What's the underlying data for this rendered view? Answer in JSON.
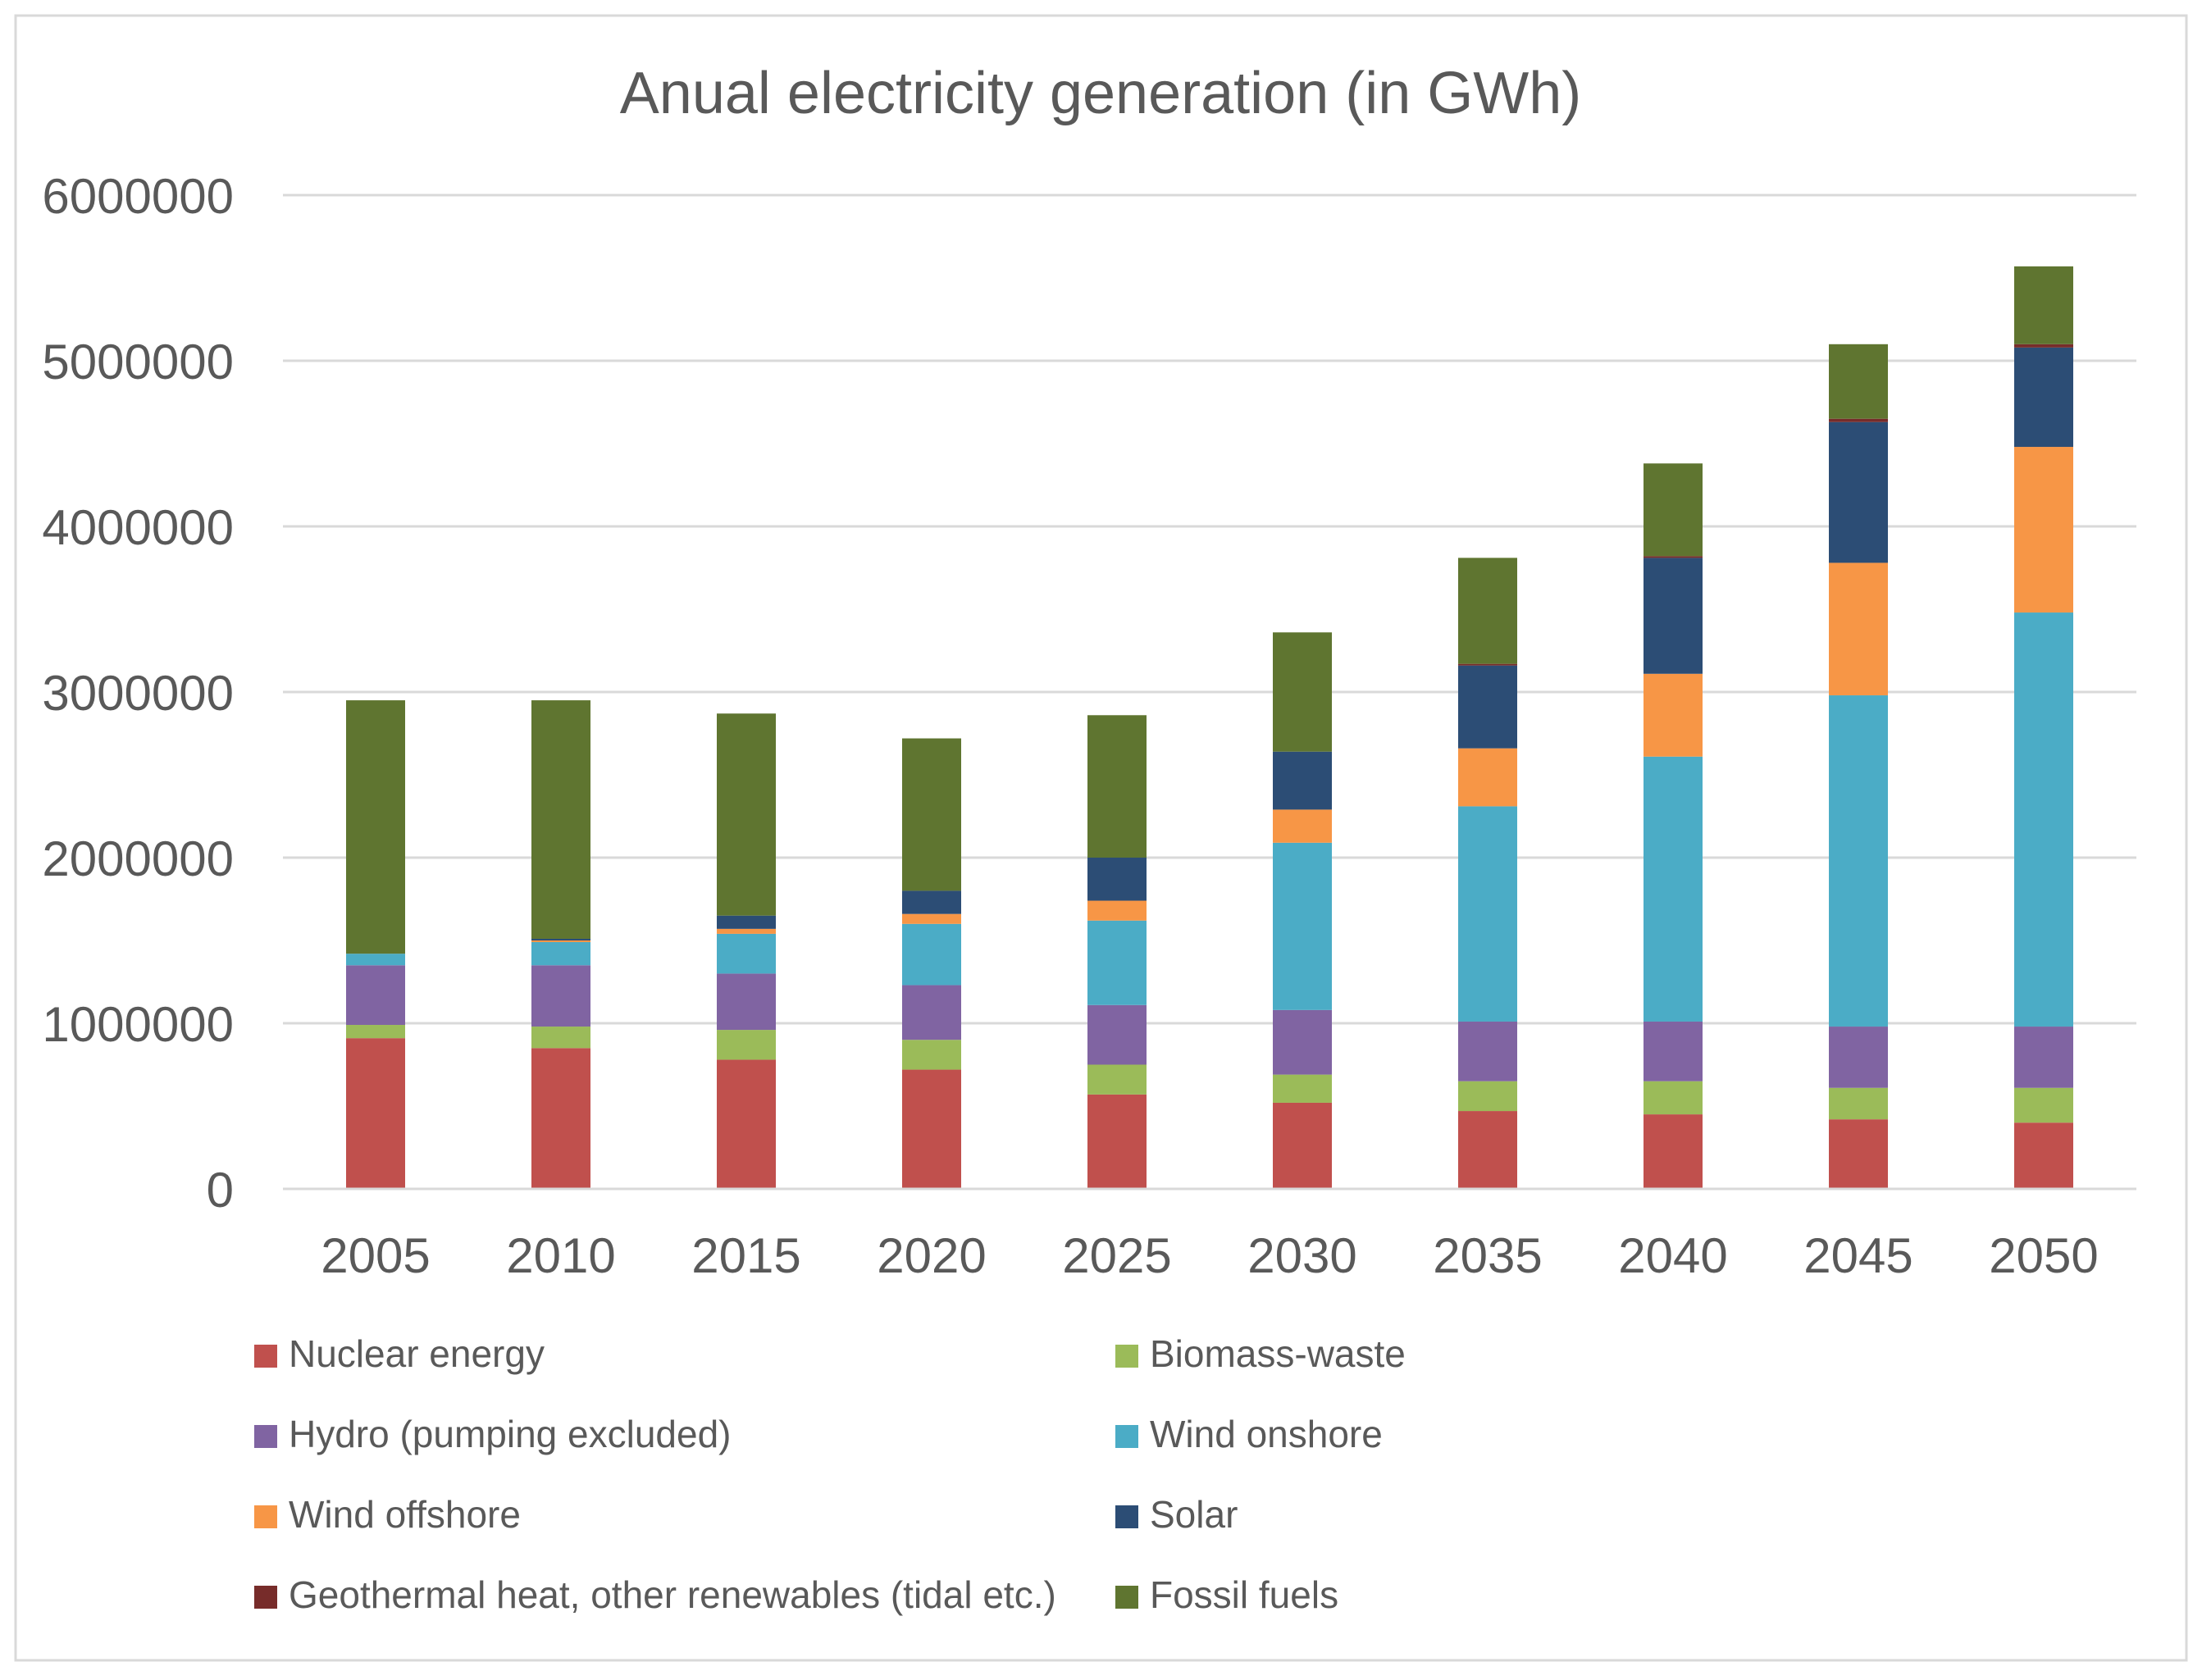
{
  "chart_data": {
    "type": "bar",
    "stacked": true,
    "title": "Anual electricity generation (in GWh)",
    "xlabel": "",
    "ylabel": "",
    "ylim": [
      0,
      6000000
    ],
    "yticks": [
      0,
      1000000,
      2000000,
      3000000,
      4000000,
      5000000,
      6000000
    ],
    "ytick_labels": [
      "0",
      "1000000",
      "2000000",
      "3000000",
      "4000000",
      "5000000",
      "6000000"
    ],
    "grid": true,
    "legend_position": "bottom",
    "categories": [
      "2005",
      "2010",
      "2015",
      "2020",
      "2025",
      "2030",
      "2035",
      "2040",
      "2045",
      "2050"
    ],
    "series": [
      {
        "name": "Nuclear energy",
        "color": "#c0504d",
        "values": [
          910000,
          850000,
          780000,
          720000,
          570000,
          520000,
          470000,
          450000,
          420000,
          400000
        ]
      },
      {
        "name": "Biomass-waste",
        "color": "#9bbb59",
        "values": [
          80000,
          130000,
          180000,
          180000,
          180000,
          170000,
          180000,
          200000,
          190000,
          210000
        ]
      },
      {
        "name": "Hydro (pumping excluded)",
        "color": "#8064a2",
        "values": [
          360000,
          370000,
          340000,
          330000,
          360000,
          390000,
          360000,
          360000,
          370000,
          370000
        ]
      },
      {
        "name": "Wind onshore",
        "color": "#4bacc6",
        "values": [
          70000,
          140000,
          240000,
          370000,
          510000,
          1010000,
          1300000,
          1600000,
          2000000,
          2500000
        ]
      },
      {
        "name": "Wind offshore",
        "color": "#f79646",
        "values": [
          0,
          10000,
          30000,
          60000,
          120000,
          200000,
          350000,
          500000,
          800000,
          1000000
        ]
      },
      {
        "name": "Solar",
        "color": "#2c4d75",
        "values": [
          0,
          10000,
          80000,
          140000,
          260000,
          350000,
          500000,
          700000,
          850000,
          600000
        ]
      },
      {
        "name": "Geothermal heat, other renewables (tidal etc.)",
        "color": "#772c2a",
        "values": [
          0,
          0,
          0,
          0,
          0,
          0,
          10000,
          10000,
          20000,
          20000
        ]
      },
      {
        "name": "Fossil fuels",
        "color": "#5f7530",
        "values": [
          1530000,
          1440000,
          1220000,
          920000,
          860000,
          720000,
          640000,
          560000,
          450000,
          470000
        ]
      }
    ]
  }
}
